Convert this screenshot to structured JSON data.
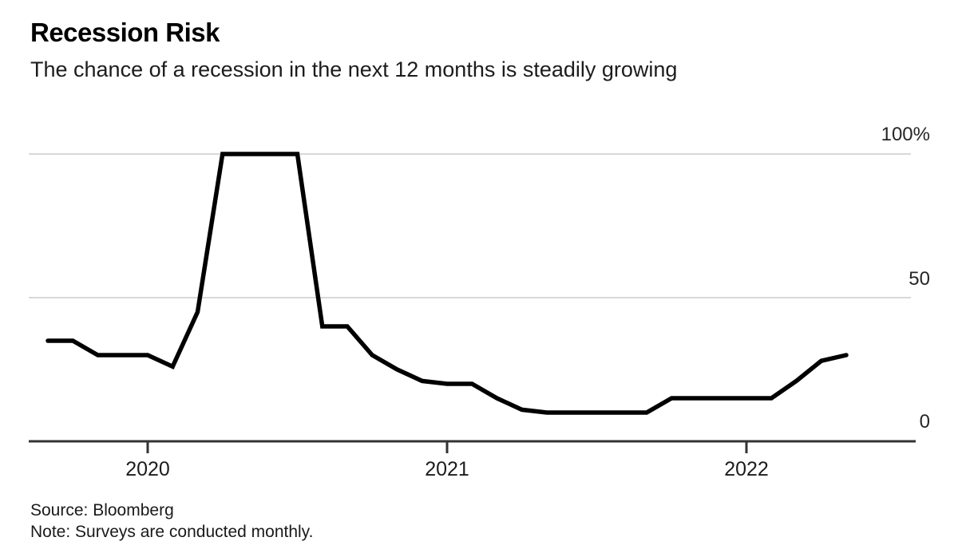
{
  "header": {
    "title": "Recession Risk",
    "subtitle": "The chance of a recession in the next 12 months is steadily growing"
  },
  "footer": {
    "source": "Source: Bloomberg",
    "note": "Note: Surveys are conducted monthly."
  },
  "colors": {
    "line": "#000000",
    "grid": "#d8d8d8",
    "axis": "#333333"
  },
  "chart_data": {
    "type": "line",
    "title": "Recession Risk",
    "subtitle": "The chance of a recession in the next 12 months is steadily growing",
    "unit": "percent",
    "x": [
      "2019-09",
      "2019-10",
      "2019-11",
      "2019-12",
      "2020-01",
      "2020-02",
      "2020-03",
      "2020-04",
      "2020-05",
      "2020-06",
      "2020-07",
      "2020-08",
      "2020-09",
      "2020-10",
      "2020-11",
      "2020-12",
      "2021-01",
      "2021-02",
      "2021-03",
      "2021-04",
      "2021-05",
      "2021-06",
      "2021-07",
      "2021-08",
      "2021-09",
      "2021-10",
      "2021-11",
      "2021-12",
      "2022-01",
      "2022-02",
      "2022-03",
      "2022-04",
      "2022-05"
    ],
    "values": [
      35,
      35,
      30,
      30,
      30,
      26,
      45,
      100,
      100,
      100,
      100,
      40,
      40,
      30,
      25,
      21,
      20,
      20,
      15,
      11,
      10,
      10,
      10,
      10,
      10,
      15,
      15,
      15,
      15,
      15,
      21,
      28,
      30
    ],
    "ylim": [
      0,
      100
    ],
    "yticks": [
      {
        "value": 100,
        "label": "100%"
      },
      {
        "value": 50,
        "label": "50"
      },
      {
        "value": 0,
        "label": "0"
      }
    ],
    "xticks": [
      {
        "label": "2020",
        "month": "2020-01"
      },
      {
        "label": "2021",
        "month": "2021-01"
      },
      {
        "label": "2022",
        "month": "2022-01"
      }
    ],
    "grid": "horizontal-light",
    "legend": "none",
    "line_color": "#000000"
  }
}
